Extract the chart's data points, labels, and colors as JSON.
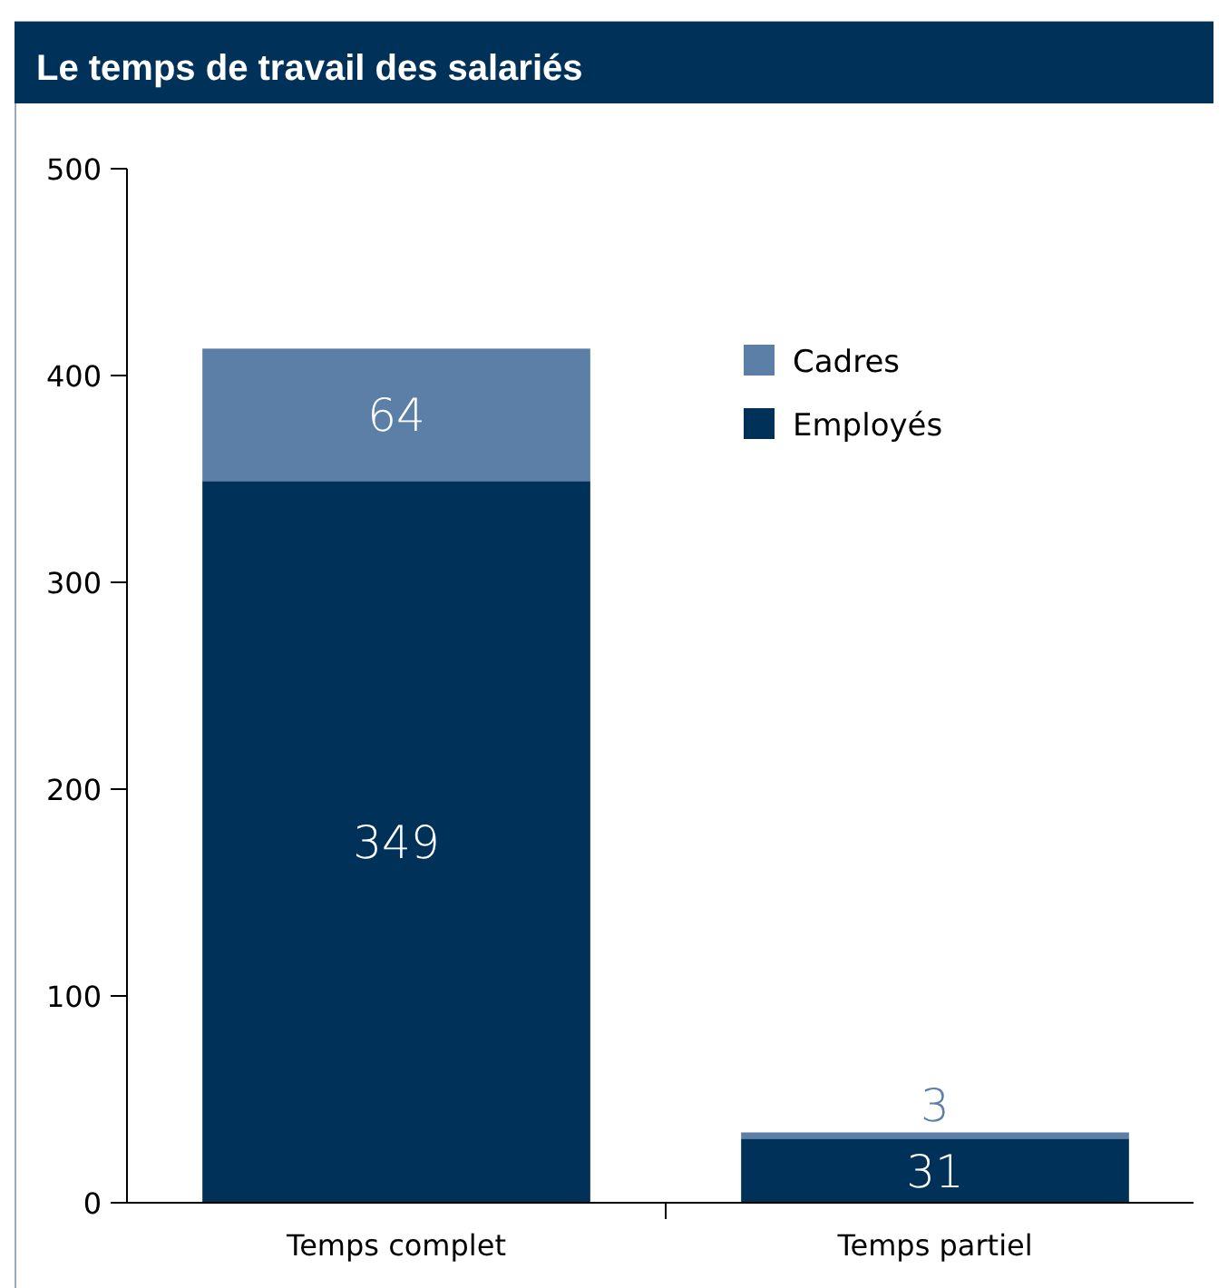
{
  "chart_data": {
    "type": "bar",
    "title": "Le temps de travail des salariés",
    "categories": [
      "Temps complet",
      "Temps partiel"
    ],
    "stacked": true,
    "series": [
      {
        "name": "Employés",
        "color": "#003159",
        "values": [
          349,
          31
        ]
      },
      {
        "name": "Cadres",
        "color": "#5b7fa6",
        "values": [
          64,
          3
        ]
      }
    ],
    "ylim": [
      0,
      500
    ],
    "yticks": [
      0,
      100,
      200,
      300,
      400,
      500
    ],
    "data_labels": true,
    "legend": "top right",
    "grid": false
  }
}
